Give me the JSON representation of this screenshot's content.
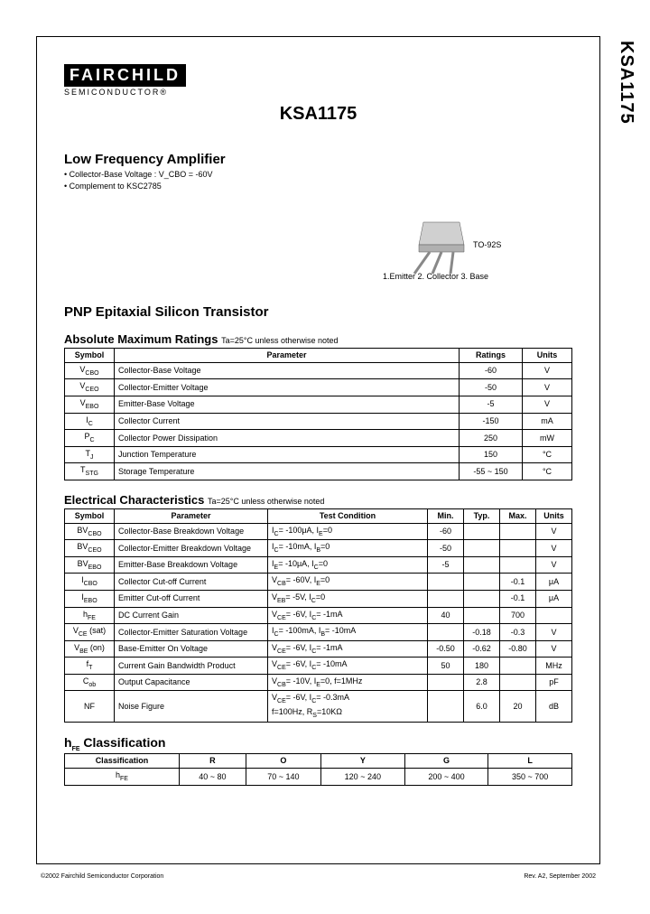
{
  "side_label": "KSA1175",
  "logo": {
    "main": "FAIRCHILD",
    "sub": "SEMICONDUCTOR®"
  },
  "part_number": "KSA1175",
  "product_heading": "Low Frequency Amplifier",
  "bullets": [
    "Collector-Base Voltage : V_CBO = -60V",
    "Complement to KSC2785"
  ],
  "package": {
    "name": "TO-92S",
    "pins": "1.Emitter  2. Collector  3. Base"
  },
  "transistor_type": "PNP Epitaxial Silicon Transistor",
  "abs_max": {
    "title": "Absolute Maximum Ratings",
    "cond": "Ta=25°C unless otherwise noted",
    "headers": [
      "Symbol",
      "Parameter",
      "Ratings",
      "Units"
    ],
    "rows": [
      [
        "V_CBO",
        "Collector-Base Voltage",
        "-60",
        "V"
      ],
      [
        "V_CEO",
        "Collector-Emitter Voltage",
        "-50",
        "V"
      ],
      [
        "V_EBO",
        "Emitter-Base Voltage",
        "-5",
        "V"
      ],
      [
        "I_C",
        "Collector Current",
        "-150",
        "mA"
      ],
      [
        "P_C",
        "Collector Power Dissipation",
        "250",
        "mW"
      ],
      [
        "T_J",
        "Junction Temperature",
        "150",
        "°C"
      ],
      [
        "T_STG",
        "Storage Temperature",
        "-55 ~ 150",
        "°C"
      ]
    ],
    "col_widths": [
      "55px",
      "auto",
      "70px",
      "55px"
    ]
  },
  "elec": {
    "title": "Electrical Characteristics",
    "cond": "Ta=25°C unless otherwise noted",
    "headers": [
      "Symbol",
      "Parameter",
      "Test Condition",
      "Min.",
      "Typ.",
      "Max.",
      "Units"
    ],
    "rows": [
      [
        "BV_CBO",
        "Collector-Base Breakdown Voltage",
        "I_C= -100μA, I_E=0",
        "-60",
        "",
        "",
        "V"
      ],
      [
        "BV_CEO",
        "Collector-Emitter Breakdown Voltage",
        "I_C= -10mA, I_B=0",
        "-50",
        "",
        "",
        "V"
      ],
      [
        "BV_EBO",
        "Emitter-Base Breakdown Voltage",
        "I_E= -10μA, I_C=0",
        "-5",
        "",
        "",
        "V"
      ],
      [
        "I_CBO",
        "Collector Cut-off Current",
        "V_CB= -60V, I_E=0",
        "",
        "",
        "-0.1",
        "μA"
      ],
      [
        "I_EBO",
        "Emitter Cut-off Current",
        "V_EB= -5V, I_C=0",
        "",
        "",
        "-0.1",
        "μA"
      ],
      [
        "h_FE",
        "DC Current Gain",
        "V_CE= -6V, I_C= -1mA",
        "40",
        "",
        "700",
        ""
      ],
      [
        "V_CE (sat)",
        "Collector-Emitter Saturation Voltage",
        "I_C= -100mA, I_B= -10mA",
        "",
        "-0.18",
        "-0.3",
        "V"
      ],
      [
        "V_BE (on)",
        "Base-Emitter On Voltage",
        "V_CE= -6V, I_C= -1mA",
        "-0.50",
        "-0.62",
        "-0.80",
        "V"
      ],
      [
        "f_T",
        "Current Gain Bandwidth Product",
        "V_CE= -6V, I_C= -10mA",
        "50",
        "180",
        "",
        "MHz"
      ],
      [
        "C_ob",
        "Output Capacitance",
        "V_CB= -10V, I_E=0, f=1MHz",
        "",
        "2.8",
        "",
        "pF"
      ],
      [
        "NF",
        "Noise Figure",
        "V_CE= -6V, I_C= -0.3mA\nf=100Hz, R_S=10KΩ",
        "",
        "6.0",
        "20",
        "dB"
      ]
    ],
    "col_widths": [
      "55px",
      "170px",
      "auto",
      "40px",
      "40px",
      "40px",
      "40px"
    ]
  },
  "hfe": {
    "title": "h_FE Classification",
    "headers": [
      "Classification",
      "R",
      "O",
      "Y",
      "G",
      "L"
    ],
    "rows": [
      [
        "h_FE",
        "40 ~ 80",
        "70 ~ 140",
        "120 ~ 240",
        "200 ~ 400",
        "350 ~ 700"
      ]
    ]
  },
  "footer": {
    "left": "©2002 Fairchild Semiconductor Corporation",
    "right": "Rev. A2, September 2002"
  },
  "colors": {
    "text": "#000000",
    "bg": "#ffffff",
    "border": "#000000"
  }
}
